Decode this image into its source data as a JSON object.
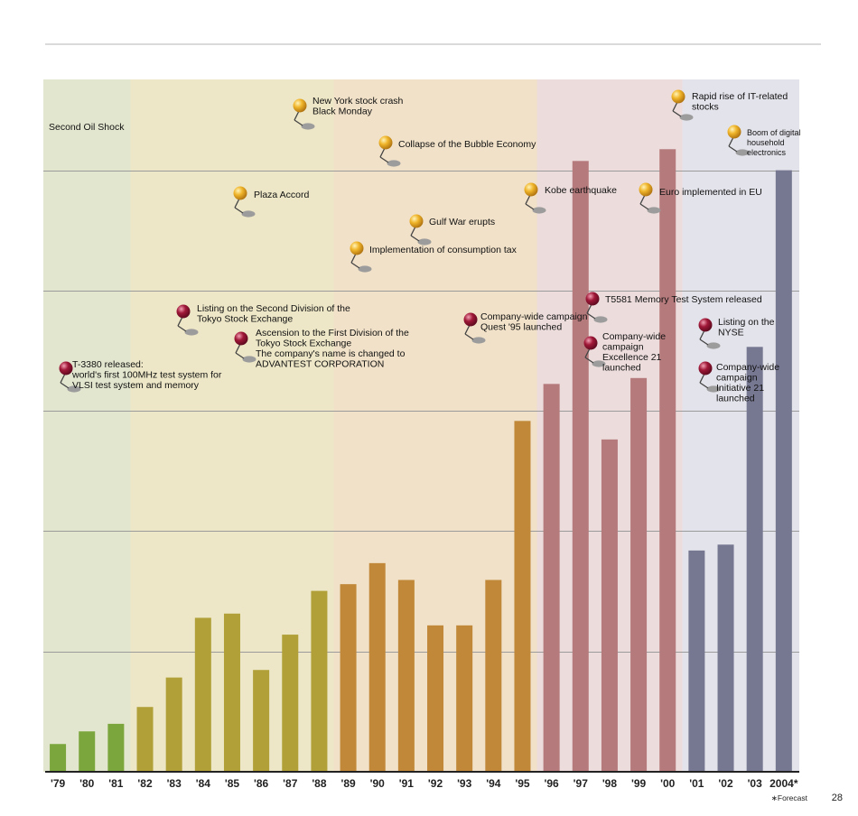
{
  "chart_data": {
    "type": "bar",
    "categories": [
      "'79",
      "'80",
      "'81",
      "'82",
      "'83",
      "'84",
      "'85",
      "'86",
      "'87",
      "'88",
      "'89",
      "'90",
      "'91",
      "'92",
      "'93",
      "'94",
      "'95",
      "'96",
      "'97",
      "'98",
      "'99",
      "'00",
      "'01",
      "'02",
      "'03",
      "2004*"
    ],
    "values": [
      33,
      48,
      57,
      77,
      112,
      183,
      188,
      121,
      163,
      215,
      223,
      248,
      228,
      174,
      174,
      228,
      417,
      461,
      726,
      395,
      468,
      740,
      263,
      270,
      505,
      715
    ],
    "ylim": [
      0,
      780
    ],
    "yticks": [
      0,
      143,
      286,
      429,
      572,
      715
    ],
    "grid": true,
    "footnote": "∗Forecast",
    "bar_colors": {
      "green": "#7aa63d",
      "olive": "#b0a037",
      "orange": "#c08838",
      "rose": "#b57a7c",
      "slate": "#767791"
    },
    "band_colors": {
      "green": "#e3e6cf",
      "olive": "#ede7c7",
      "orange": "#f1e1c8",
      "rose": "#ecdcdc",
      "slate": "#e3e3eb"
    },
    "groups": [
      {
        "color": "green",
        "from": 0,
        "to": 2
      },
      {
        "color": "olive",
        "from": 3,
        "to": 9
      },
      {
        "color": "orange",
        "from": 10,
        "to": 16
      },
      {
        "color": "rose",
        "from": 17,
        "to": 21
      },
      {
        "color": "slate",
        "from": 22,
        "to": 25
      }
    ],
    "annotations": [
      {
        "id": "second-oil-shock",
        "pin": "none",
        "lines": [
          "Second Oil Shock"
        ]
      },
      {
        "id": "black-monday",
        "pin": "gold",
        "lines": [
          "New York stock crash",
          "Black Monday"
        ]
      },
      {
        "id": "bubble-collapse",
        "pin": "gold",
        "lines": [
          "Collapse of the Bubble Economy"
        ]
      },
      {
        "id": "it-stocks",
        "pin": "gold",
        "lines": [
          "Rapid rise of IT-related",
          "stocks"
        ]
      },
      {
        "id": "digital-boom",
        "pin": "gold",
        "small": true,
        "lines": [
          "Boom of digital",
          "household",
          "electronics"
        ]
      },
      {
        "id": "plaza-accord",
        "pin": "gold",
        "lines": [
          "Plaza Accord"
        ]
      },
      {
        "id": "kobe-earthquake",
        "pin": "gold",
        "lines": [
          "Kobe earthquake"
        ]
      },
      {
        "id": "euro",
        "pin": "gold",
        "lines": [
          "Euro implemented in EU"
        ]
      },
      {
        "id": "gulf-war",
        "pin": "gold",
        "lines": [
          "Gulf War erupts"
        ]
      },
      {
        "id": "consumption-tax",
        "pin": "gold",
        "lines": [
          "Implementation of consumption tax"
        ]
      },
      {
        "id": "t5581",
        "pin": "red",
        "lines": [
          "T5581 Memory Test System released"
        ]
      },
      {
        "id": "second-division",
        "pin": "red",
        "lines": [
          "Listing on the Second Division of the",
          "Tokyo Stock Exchange"
        ]
      },
      {
        "id": "quest95",
        "pin": "red",
        "lines": [
          "Company-wide campaign",
          "Quest '95 launched"
        ]
      },
      {
        "id": "nyse",
        "pin": "red",
        "lines": [
          "Listing on the",
          "NYSE"
        ]
      },
      {
        "id": "first-division",
        "pin": "red",
        "lines": [
          "Ascension to the First Division of the",
          "Tokyo Stock Exchange",
          "The company's name is changed to",
          "ADVANTEST CORPORATION"
        ]
      },
      {
        "id": "excellence21",
        "pin": "red",
        "lines": [
          "Company-wide",
          "campaign",
          "Excellence 21",
          "launched"
        ]
      },
      {
        "id": "t3380",
        "pin": "red",
        "lines": [
          "T-3380 released:",
          "world's first 100MHz test system for",
          "VLSI test system and memory"
        ]
      },
      {
        "id": "initiative21",
        "pin": "red",
        "lines": [
          "Company-wide",
          "campaign",
          "Initiative 21",
          "launched"
        ]
      }
    ]
  },
  "page": {
    "number": "28",
    "rule_color": "#b4b4b4"
  }
}
